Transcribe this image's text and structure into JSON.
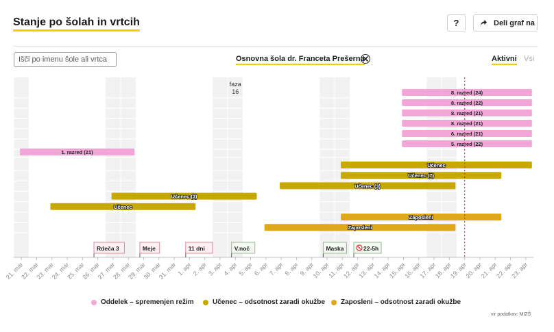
{
  "header": {
    "title": "Stanje po šolah in vrtcih",
    "help_label": "?",
    "share_label": "Deli graf na"
  },
  "search": {
    "placeholder": "Išči po imenu šole ali vrtca"
  },
  "selected_school": "Osnovna šola dr. Franceta Prešerna",
  "toggle": {
    "active_label": "Aktivni",
    "all_label": "Vsi"
  },
  "colors": {
    "oddelek": "#f2a6d8",
    "ucenec": "#c7a800",
    "zaposleni": "#dfa81c",
    "accent": "#f5cc00",
    "today_line": "#e03030"
  },
  "chart_data": {
    "type": "timeline",
    "x_axis": [
      "21. mar",
      "22. mar",
      "23. mar",
      "24. mar",
      "25. mar",
      "26. mar",
      "27. mar",
      "28. mar",
      "29. mar",
      "30. mar",
      "31. mar",
      "1. apr",
      "2. apr",
      "3. apr",
      "4. apr",
      "5. apr",
      "6. apr",
      "7. apr",
      "8. apr",
      "9. apr",
      "10. apr",
      "11. apr",
      "12. apr",
      "13. apr",
      "14. apr",
      "15. apr",
      "16. apr",
      "17. apr",
      "18. apr",
      "19. apr",
      "20. apr",
      "21. apr",
      "22. apr",
      "23. apr"
    ],
    "weekend_shading": [
      [
        "21. mar",
        "21. mar"
      ],
      [
        "27. mar",
        "28. mar"
      ],
      [
        "3. apr",
        "4. apr"
      ],
      [
        "10. apr",
        "11. apr"
      ],
      [
        "17. apr",
        "18. apr"
      ]
    ],
    "today": "19. apr",
    "phase_marker": {
      "label": "faza",
      "value": "16",
      "date": "4. apr"
    },
    "bars": [
      {
        "category": "Oddelek",
        "label": "8. razred (24)",
        "start": "15. apr",
        "end": "23. apr"
      },
      {
        "category": "Oddelek",
        "label": "8. razred (22)",
        "start": "15. apr",
        "end": "23. apr"
      },
      {
        "category": "Oddelek",
        "label": "8. razred (21)",
        "start": "15. apr",
        "end": "23. apr"
      },
      {
        "category": "Oddelek",
        "label": "8. razred (21)",
        "start": "15. apr",
        "end": "23. apr"
      },
      {
        "category": "Oddelek",
        "label": "6. razred (21)",
        "start": "15. apr",
        "end": "23. apr"
      },
      {
        "category": "Oddelek",
        "label": "5. razred (22)",
        "start": "15. apr",
        "end": "23. apr"
      },
      {
        "category": "Oddelek",
        "label": "1. razred (21)",
        "start": "21. mar",
        "end": "28. mar"
      },
      {
        "category": "Učenec",
        "label": "Učenec",
        "start": "11. apr",
        "end": "23. apr"
      },
      {
        "category": "Učenec",
        "label": "Učenec (7)",
        "start": "11. apr",
        "end": "21. apr"
      },
      {
        "category": "Učenec",
        "label": "Učenec (3)",
        "start": "7. apr",
        "end": "18. apr"
      },
      {
        "category": "Učenec",
        "label": "Učenec (3)",
        "start": "27. mar",
        "end": "5. apr"
      },
      {
        "category": "Učenec",
        "label": "Učenec",
        "start": "23. mar",
        "end": "1. apr"
      },
      {
        "category": "Zaposleni",
        "label": "Zaposleni",
        "start": "11. apr",
        "end": "21. apr"
      },
      {
        "category": "Zaposleni",
        "label": "Zaposleni",
        "start": "6. apr",
        "end": "18. apr"
      }
    ],
    "event_markers": [
      {
        "label": "Rdeča 3",
        "date": "26. mar",
        "style": "red"
      },
      {
        "label": "Meje",
        "date": "29. mar",
        "style": "red"
      },
      {
        "label": "11 dni",
        "date": "1. apr",
        "style": "red"
      },
      {
        "label": "V.noč",
        "date": "4. apr",
        "style": "green"
      },
      {
        "label": "Maska",
        "date": "10. apr",
        "style": "green"
      },
      {
        "label": "22-5h",
        "date": "12. apr",
        "style": "green-icon"
      }
    ]
  },
  "legend": [
    {
      "label": "Oddelek – spremenjen režim",
      "color": "#f2a6d8"
    },
    {
      "label": "Učenec – odsotnost zaradi okužbe",
      "color": "#c7a800"
    },
    {
      "label": "Zaposleni – odsotnost zaradi okužbe",
      "color": "#dfa81c"
    }
  ],
  "source_note": "vir podatkov: MIZŠ"
}
